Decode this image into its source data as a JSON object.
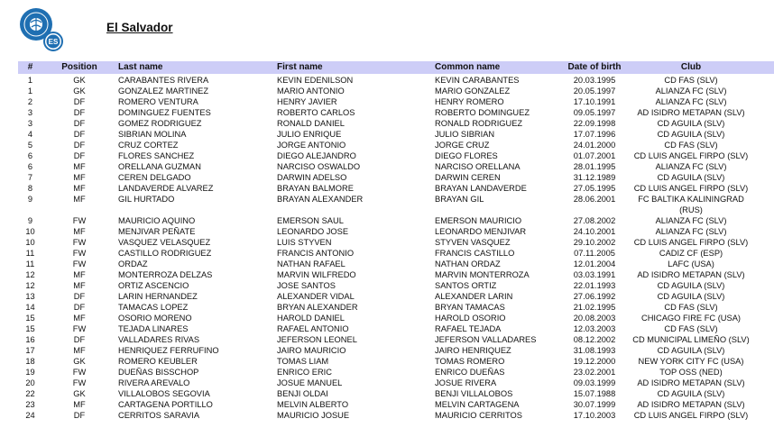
{
  "header": {
    "title": "El Salvador",
    "logo_text": "ES"
  },
  "colors": {
    "header_bar": "#cdcdf7",
    "logo_blue": "#1f6fb2"
  },
  "table": {
    "columns": [
      "#",
      "Position",
      "Last name",
      "First name",
      "Common name",
      "Date of birth",
      "Club"
    ],
    "rows": [
      [
        "1",
        "GK",
        "CARABANTES RIVERA",
        "KEVIN EDENILSON",
        "KEVIN CARABANTES",
        "20.03.1995",
        "CD FAS (SLV)"
      ],
      [
        "1",
        "GK",
        "GONZALEZ MARTINEZ",
        "MARIO ANTONIO",
        "MARIO GONZALEZ",
        "20.05.1997",
        "ALIANZA FC (SLV)"
      ],
      [
        "2",
        "DF",
        "ROMERO VENTURA",
        "HENRY JAVIER",
        "HENRY ROMERO",
        "17.10.1991",
        "ALIANZA FC (SLV)"
      ],
      [
        "3",
        "DF",
        "DOMINGUEZ FUENTES",
        "ROBERTO CARLOS",
        "ROBERTO DOMINGUEZ",
        "09.05.1997",
        "AD ISIDRO METAPAN (SLV)"
      ],
      [
        "3",
        "DF",
        "GOMEZ RODRIGUEZ",
        "RONALD DANIEL",
        "RONALD RODRIGUEZ",
        "22.09.1998",
        "CD AGUILA (SLV)"
      ],
      [
        "4",
        "DF",
        "SIBRIAN MOLINA",
        "JULIO ENRIQUE",
        "JULIO SIBRIAN",
        "17.07.1996",
        "CD AGUILA (SLV)"
      ],
      [
        "5",
        "DF",
        "CRUZ CORTEZ",
        "JORGE ANTONIO",
        "JORGE CRUZ",
        "24.01.2000",
        "CD FAS (SLV)"
      ],
      [
        "6",
        "DF",
        "FLORES SANCHEZ",
        "DIEGO ALEJANDRO",
        "DIEGO FLORES",
        "01.07.2001",
        "CD LUIS ANGEL FIRPO (SLV)"
      ],
      [
        "6",
        "MF",
        "ORELLANA GUZMAN",
        "NARCISO OSWALDO",
        "NARCISO ORELLANA",
        "28.01.1995",
        "ALIANZA FC (SLV)"
      ],
      [
        "7",
        "MF",
        "CEREN DELGADO",
        "DARWIN ADELSO",
        "DARWIN CEREN",
        "31.12.1989",
        "CD AGUILA (SLV)"
      ],
      [
        "8",
        "MF",
        "LANDAVERDE ALVAREZ",
        "BRAYAN BALMORE",
        "BRAYAN LANDAVERDE",
        "27.05.1995",
        "CD LUIS ANGEL FIRPO (SLV)"
      ],
      [
        "9",
        "MF",
        "GIL HURTADO",
        "BRAYAN ALEXANDER",
        "BRAYAN GIL",
        "28.06.2001",
        "FC BALTIKA KALININGRAD (RUS)"
      ],
      [
        "9",
        "FW",
        "MAURICIO AQUINO",
        "EMERSON SAUL",
        "EMERSON MAURICIO",
        "27.08.2002",
        "ALIANZA FC (SLV)"
      ],
      [
        "10",
        "MF",
        "MENJIVAR PEÑATE",
        "LEONARDO JOSE",
        "LEONARDO MENJIVAR",
        "24.10.2001",
        "ALIANZA FC (SLV)"
      ],
      [
        "10",
        "FW",
        "VASQUEZ VELASQUEZ",
        "LUIS STYVEN",
        "STYVEN VASQUEZ",
        "29.10.2002",
        "CD LUIS ANGEL FIRPO (SLV)"
      ],
      [
        "11",
        "FW",
        "CASTILLO RODRIGUEZ",
        "FRANCIS ANTONIO",
        "FRANCIS CASTILLO",
        "07.11.2005",
        "CADIZ CF (ESP)"
      ],
      [
        "11",
        "FW",
        "ORDAZ",
        "NATHAN RAFAEL",
        "NATHAN ORDAZ",
        "12.01.2004",
        "LAFC (USA)"
      ],
      [
        "12",
        "MF",
        "MONTERROZA DELZAS",
        "MARVIN WILFREDO",
        "MARVIN MONTERROZA",
        "03.03.1991",
        "AD ISIDRO METAPAN (SLV)"
      ],
      [
        "12",
        "MF",
        "ORTIZ ASCENCIO",
        "JOSE SANTOS",
        "SANTOS ORTIZ",
        "22.01.1993",
        "CD AGUILA (SLV)"
      ],
      [
        "13",
        "DF",
        "LARIN HERNANDEZ",
        "ALEXANDER VIDAL",
        "ALEXANDER LARIN",
        "27.06.1992",
        "CD AGUILA (SLV)"
      ],
      [
        "14",
        "DF",
        "TAMACAS LOPEZ",
        "BRYAN ALEXANDER",
        "BRYAN TAMACAS",
        "21.02.1995",
        "CD FAS (SLV)"
      ],
      [
        "15",
        "MF",
        "OSORIO MORENO",
        "HAROLD DANIEL",
        "HAROLD OSORIO",
        "20.08.2003",
        "CHICAGO FIRE FC (USA)"
      ],
      [
        "15",
        "FW",
        "TEJADA LINARES",
        "RAFAEL ANTONIO",
        "RAFAEL TEJADA",
        "12.03.2003",
        "CD FAS (SLV)"
      ],
      [
        "16",
        "DF",
        "VALLADARES RIVAS",
        "JEFERSON LEONEL",
        "JEFERSON VALLADARES",
        "08.12.2002",
        "CD MUNICIPAL LIMEÑO (SLV)"
      ],
      [
        "17",
        "MF",
        "HENRIQUEZ FERRUFINO",
        "JAIRO MAURICIO",
        "JAIRO HENRIQUEZ",
        "31.08.1993",
        "CD AGUILA (SLV)"
      ],
      [
        "18",
        "GK",
        "ROMERO KEUBLER",
        "TOMAS LIAM",
        "TOMAS ROMERO",
        "19.12.2000",
        "NEW YORK CITY FC (USA)"
      ],
      [
        "19",
        "FW",
        "DUEÑAS BISSCHOP",
        "ENRICO ERIC",
        "ENRICO DUEÑAS",
        "23.02.2001",
        "TOP OSS (NED)"
      ],
      [
        "20",
        "FW",
        "RIVERA AREVALO",
        "JOSUE MANUEL",
        "JOSUE  RIVERA",
        "09.03.1999",
        "AD ISIDRO METAPAN (SLV)"
      ],
      [
        "22",
        "GK",
        "VILLALOBOS SEGOVIA",
        "BENJI OLDAI",
        "BENJI VILLALOBOS",
        "15.07.1988",
        "CD AGUILA (SLV)"
      ],
      [
        "23",
        "MF",
        "CARTAGENA PORTILLO",
        "MELVIN ALBERTO",
        "MELVIN CARTAGENA",
        "30.07.1999",
        "AD ISIDRO METAPAN (SLV)"
      ],
      [
        "24",
        "DF",
        "CERRITOS SARAVIA",
        "MAURICIO JOSUE",
        "MAURICIO CERRITOS",
        "17.10.2003",
        "CD LUIS ANGEL FIRPO (SLV)"
      ]
    ]
  }
}
